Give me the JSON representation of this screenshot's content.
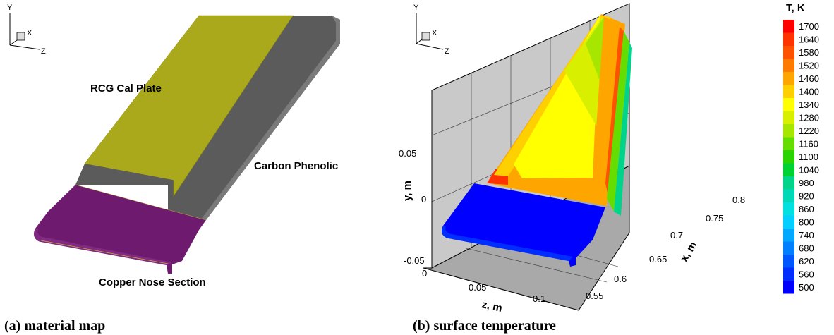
{
  "panel_a": {
    "triad": {
      "y": "Y",
      "x": "X",
      "z": "Z"
    },
    "labels": {
      "rcg": "RCG Cal Plate",
      "carbon": "Carbon Phenolic",
      "copper": "Copper Nose Section"
    },
    "colors": {
      "rcg": "#aaa91c",
      "carbon": "#5b5b5b",
      "copper": "#6e1a6e"
    },
    "caption": "(a) material map"
  },
  "panel_b": {
    "triad": {
      "y": "Y",
      "x": "X",
      "z": "Z"
    },
    "axes": {
      "y_title": "y, m",
      "z_title": "z, m",
      "x_title": "x, m",
      "y_ticks": [
        "0.05",
        "0",
        "-0.05"
      ],
      "z_ticks": [
        "0",
        "0.05",
        "0.1"
      ],
      "x_ticks": [
        "0.55",
        "0.6",
        "0.65",
        "0.7",
        "0.75",
        "0.8"
      ]
    },
    "legend": {
      "title": "T, K",
      "levels": [
        "1700",
        "1640",
        "1580",
        "1520",
        "1460",
        "1400",
        "1340",
        "1280",
        "1220",
        "1160",
        "1100",
        "1040",
        "980",
        "920",
        "860",
        "800",
        "740",
        "680",
        "620",
        "560",
        "500"
      ],
      "colors": [
        "#ff0000",
        "#ff3300",
        "#ff5200",
        "#ff7a00",
        "#ffa500",
        "#ffd000",
        "#ffff00",
        "#d8f000",
        "#a6e600",
        "#66dd00",
        "#2bd400",
        "#00d233",
        "#00d48a",
        "#00d8b8",
        "#00e0e0",
        "#00cfff",
        "#00a8ff",
        "#0080ff",
        "#0057ff",
        "#002eff",
        "#0000ff"
      ]
    },
    "caption": "(b) surface temperature"
  }
}
